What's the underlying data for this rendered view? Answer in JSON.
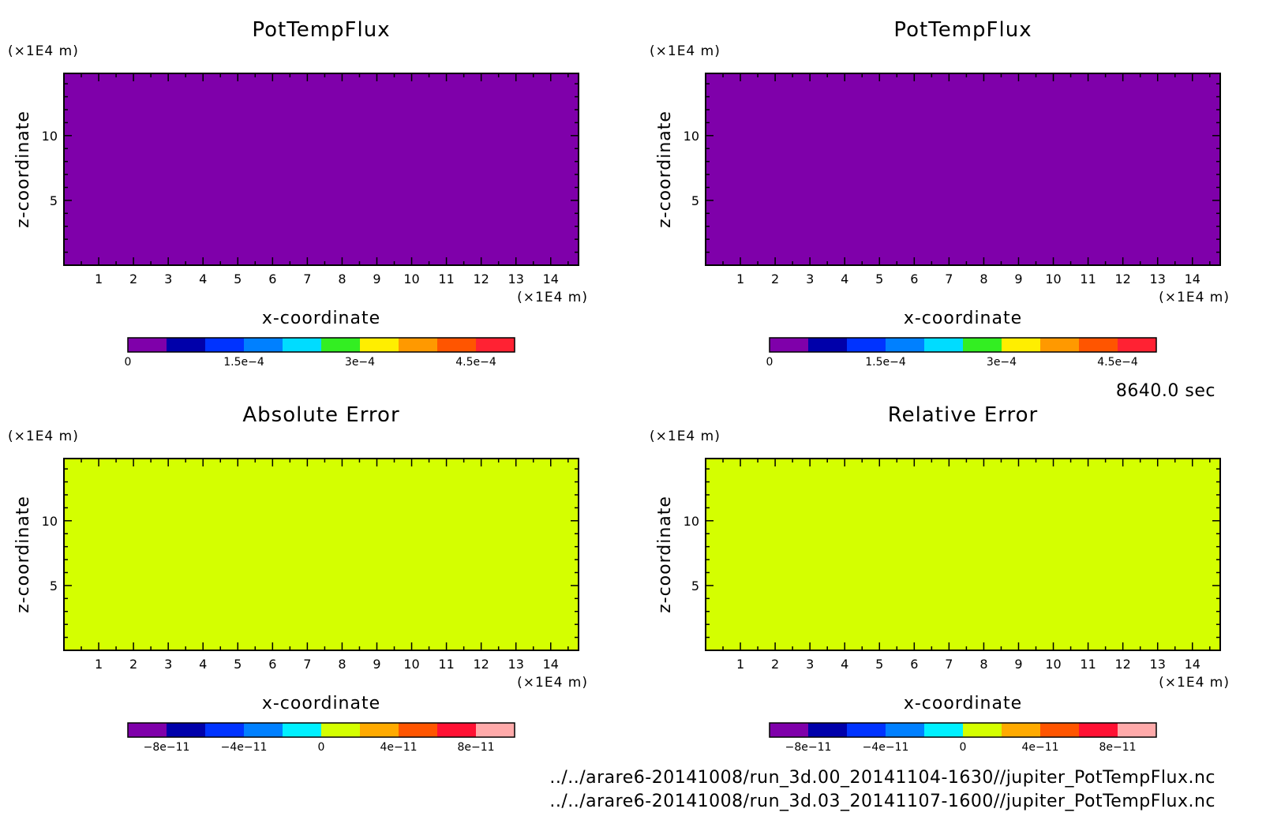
{
  "footer": {
    "time_label": "8640.0 sec",
    "file1": "../../arare6-20141008/run_3d.00_20141104-1630//jupiter_PotTempFlux.nc",
    "file2": "../../arare6-20141008/run_3d.03_20141107-1600//jupiter_PotTempFlux.nc"
  },
  "chart_data": [
    {
      "type": "heatmap",
      "title": "PotTempFlux",
      "xlabel": "x-coordinate",
      "ylabel": "z-coordinate",
      "xunit": "(×1E4 m)",
      "yunit": "(×1E4 m)",
      "xlim": [
        0,
        14.8
      ],
      "ylim": [
        0,
        14.8
      ],
      "xticks": [
        1,
        2,
        3,
        4,
        5,
        6,
        7,
        8,
        9,
        10,
        11,
        12,
        13,
        14
      ],
      "yticks": [
        5,
        10
      ],
      "fill_value": 0,
      "fill_color": "#7f00aa",
      "colorbar": {
        "levels": [
          0,
          5e-05,
          0.0001,
          0.00015,
          0.0002,
          0.00025,
          0.0003,
          0.00035,
          0.0004,
          0.00045,
          0.0005
        ],
        "colors": [
          "#7f00aa",
          "#0000aa",
          "#0033ff",
          "#0080ff",
          "#00dcff",
          "#33ee22",
          "#ffee00",
          "#ff9900",
          "#ff5500",
          "#ff2233",
          "#ffaaaa"
        ],
        "ticklabels": [
          {
            "value": 0,
            "label": "0"
          },
          {
            "value": 0.00015,
            "label": "1.5e−4"
          },
          {
            "value": 0.0003,
            "label": "3e−4"
          },
          {
            "value": 0.00045,
            "label": "4.5e−4"
          }
        ]
      }
    },
    {
      "type": "heatmap",
      "title": "PotTempFlux",
      "xlabel": "x-coordinate",
      "ylabel": "z-coordinate",
      "xunit": "(×1E4 m)",
      "yunit": "(×1E4 m)",
      "xlim": [
        0,
        14.8
      ],
      "ylim": [
        0,
        14.8
      ],
      "xticks": [
        1,
        2,
        3,
        4,
        5,
        6,
        7,
        8,
        9,
        10,
        11,
        12,
        13,
        14
      ],
      "yticks": [
        5,
        10
      ],
      "fill_value": 0,
      "fill_color": "#7f00aa",
      "colorbar": {
        "levels": [
          0,
          5e-05,
          0.0001,
          0.00015,
          0.0002,
          0.00025,
          0.0003,
          0.00035,
          0.0004,
          0.00045,
          0.0005
        ],
        "colors": [
          "#7f00aa",
          "#0000aa",
          "#0033ff",
          "#0080ff",
          "#00dcff",
          "#33ee22",
          "#ffee00",
          "#ff9900",
          "#ff5500",
          "#ff2233",
          "#ffaaaa"
        ],
        "ticklabels": [
          {
            "value": 0,
            "label": "0"
          },
          {
            "value": 0.00015,
            "label": "1.5e−4"
          },
          {
            "value": 0.0003,
            "label": "3e−4"
          },
          {
            "value": 0.00045,
            "label": "4.5e−4"
          }
        ]
      }
    },
    {
      "type": "heatmap",
      "title": "Absolute Error",
      "xlabel": "x-coordinate",
      "ylabel": "z-coordinate",
      "xunit": "(×1E4 m)",
      "yunit": "(×1E4 m)",
      "xlim": [
        0,
        14.8
      ],
      "ylim": [
        0,
        14.8
      ],
      "xticks": [
        1,
        2,
        3,
        4,
        5,
        6,
        7,
        8,
        9,
        10,
        11,
        12,
        13,
        14
      ],
      "yticks": [
        5,
        10
      ],
      "fill_value": 0,
      "fill_color": "#d4ff00",
      "colorbar": {
        "levels": [
          -1e-10,
          -8e-11,
          -6e-11,
          -4e-11,
          -2e-11,
          0,
          2e-11,
          4e-11,
          6e-11,
          8e-11,
          1e-10
        ],
        "colors": [
          "#7f00aa",
          "#0000aa",
          "#0033ff",
          "#0080ff",
          "#00f0ff",
          "#d4ff00",
          "#ffaa00",
          "#ff5500",
          "#ff1133",
          "#ffaaaa"
        ],
        "ticklabels": [
          {
            "value": -8e-11,
            "label": "−8e−11"
          },
          {
            "value": -4e-11,
            "label": "−4e−11"
          },
          {
            "value": 0,
            "label": "0"
          },
          {
            "value": 4e-11,
            "label": "4e−11"
          },
          {
            "value": 8e-11,
            "label": "8e−11"
          }
        ]
      }
    },
    {
      "type": "heatmap",
      "title": "Relative Error",
      "xlabel": "x-coordinate",
      "ylabel": "z-coordinate",
      "xunit": "(×1E4 m)",
      "yunit": "(×1E4 m)",
      "xlim": [
        0,
        14.8
      ],
      "ylim": [
        0,
        14.8
      ],
      "xticks": [
        1,
        2,
        3,
        4,
        5,
        6,
        7,
        8,
        9,
        10,
        11,
        12,
        13,
        14
      ],
      "yticks": [
        5,
        10
      ],
      "fill_value": 0,
      "fill_color": "#d4ff00",
      "colorbar": {
        "levels": [
          -1e-10,
          -8e-11,
          -6e-11,
          -4e-11,
          -2e-11,
          0,
          2e-11,
          4e-11,
          6e-11,
          8e-11,
          1e-10
        ],
        "colors": [
          "#7f00aa",
          "#0000aa",
          "#0033ff",
          "#0080ff",
          "#00f0ff",
          "#d4ff00",
          "#ffaa00",
          "#ff5500",
          "#ff1133",
          "#ffaaaa"
        ],
        "ticklabels": [
          {
            "value": -8e-11,
            "label": "−8e−11"
          },
          {
            "value": -4e-11,
            "label": "−4e−11"
          },
          {
            "value": 0,
            "label": "0"
          },
          {
            "value": 4e-11,
            "label": "4e−11"
          },
          {
            "value": 8e-11,
            "label": "8e−11"
          }
        ]
      }
    }
  ]
}
